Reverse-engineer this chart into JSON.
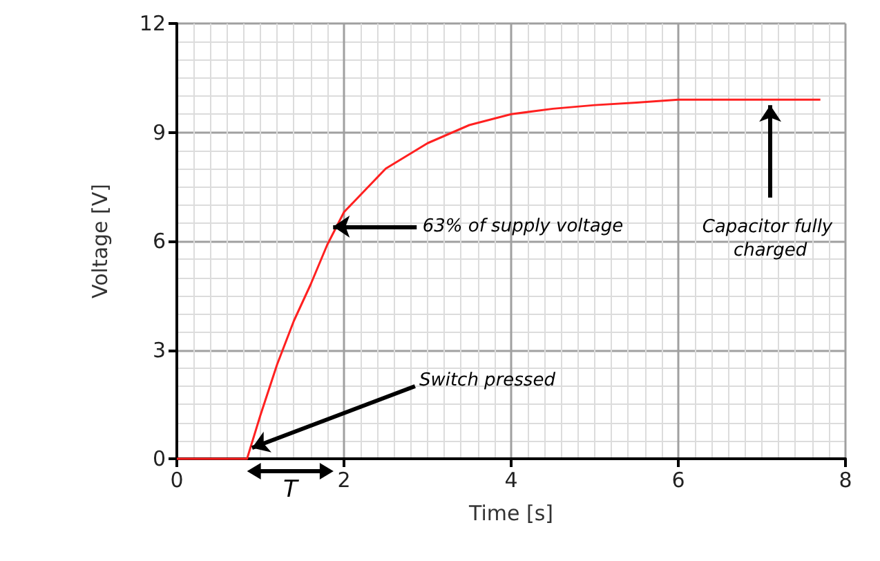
{
  "chart_data": {
    "type": "line",
    "xlabel": "Time [s]",
    "ylabel": "Voltage [V]",
    "x": [
      0,
      0.84,
      1,
      1.2,
      1.4,
      1.6,
      1.8,
      2,
      2.25,
      2.5,
      3,
      3.5,
      4,
      4.5,
      5,
      5.5,
      6,
      7.7
    ],
    "series": [
      {
        "color": "#ff2020",
        "values": [
          0,
          0,
          1.2,
          2.6,
          3.8,
          4.8,
          5.9,
          6.8,
          7.4,
          8.0,
          8.7,
          9.2,
          9.5,
          9.65,
          9.75,
          9.82,
          9.9,
          9.9
        ]
      }
    ],
    "xlim": [
      0,
      8
    ],
    "xticks": [
      0,
      2,
      4,
      6,
      8
    ],
    "ylim": [
      0,
      12
    ],
    "yticks": [
      0,
      3,
      6,
      9,
      12
    ],
    "grid": true,
    "marker": "none",
    "line_style": "solid",
    "annotations": [
      {
        "text": "63% of supply voltage",
        "x": 1.87,
        "y": 6.4
      },
      {
        "text": "Switch pressed",
        "x": 0.9,
        "y": 0.3
      },
      {
        "text": "Capacitor fully charged",
        "x": 7.1,
        "y": 9.75
      },
      "T"
    ]
  }
}
